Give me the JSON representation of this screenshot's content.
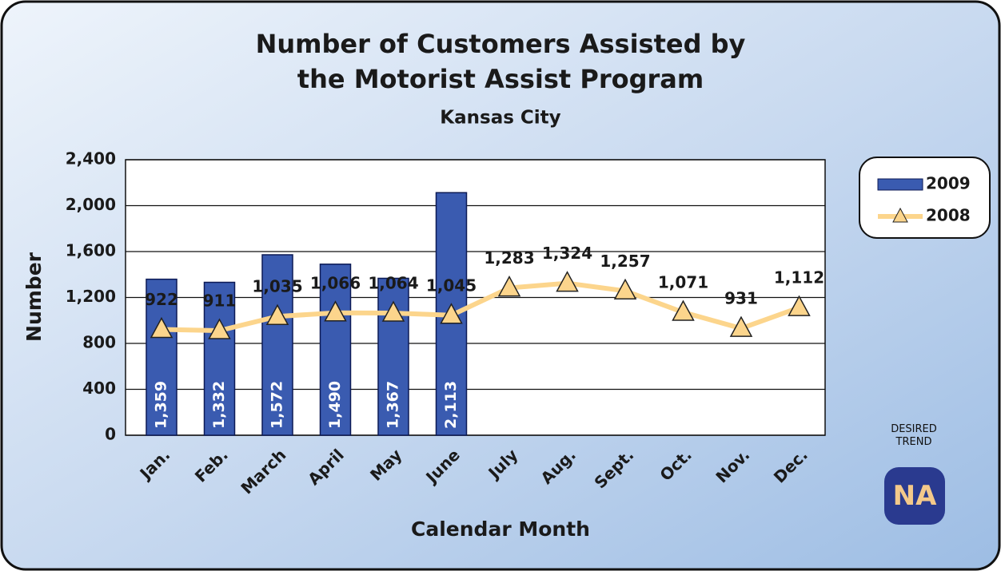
{
  "chart_data": {
    "type": "bar_line",
    "title": [
      "Number of Customers Assisted by",
      "the Motorist Assist Program"
    ],
    "subtitle": "Kansas City",
    "x_label": "Calendar Month",
    "y_label": "Number",
    "categories": [
      "Jan.",
      "Feb.",
      "March",
      "April",
      "May",
      "June",
      "July",
      "Aug.",
      "Sept.",
      "Oct.",
      "Nov.",
      "Dec."
    ],
    "series": [
      {
        "name": "2009",
        "type": "bar",
        "color": "#3a5bb0",
        "values": [
          1359,
          1332,
          1572,
          1490,
          1367,
          2113,
          null,
          null,
          null,
          null,
          null,
          null
        ],
        "value_labels": [
          "1,359",
          "1,332",
          "1,572",
          "1,490",
          "1,367",
          "2,113",
          null,
          null,
          null,
          null,
          null,
          null
        ]
      },
      {
        "name": "2008",
        "type": "line",
        "color": "#fcd58c",
        "values": [
          922,
          911,
          1035,
          1066,
          1064,
          1045,
          1283,
          1324,
          1257,
          1071,
          931,
          1112
        ],
        "value_labels": [
          "922",
          "911",
          "1,035",
          "1,066",
          "1,064",
          "1,045",
          "1,283",
          "1,324",
          "1,257",
          "1,071",
          "931",
          "1,112"
        ]
      }
    ],
    "ylim": [
      0,
      2400
    ],
    "yticks": [
      0,
      400,
      800,
      {
        "value": 1200,
        "label": "1,200"
      },
      {
        "value": 1600,
        "label": "1,600"
      },
      {
        "value": 2000,
        "label": "2,000"
      },
      {
        "value": 2400,
        "label": "2,400"
      }
    ],
    "grid": true,
    "legend": "right",
    "desired_trend_label": "DESIRED TREND",
    "desired_trend": "NA"
  }
}
